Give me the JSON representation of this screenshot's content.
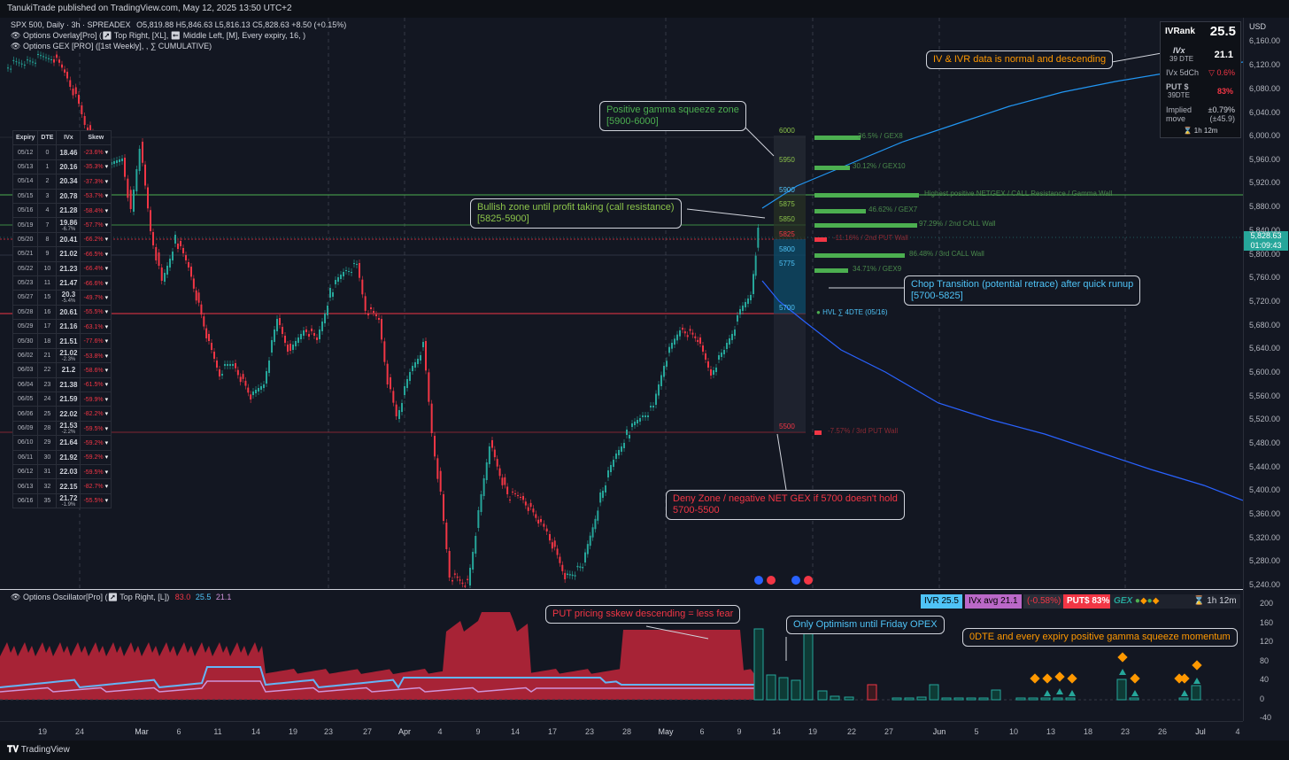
{
  "header": {
    "published": "TanukiTrade published on TradingView.com, May 12, 2025 13:50 UTC+2",
    "symbol": "SPX 500, Daily · 3h · SPREADEX",
    "ohlc": "O5,819.88 H5,846.63 L5,816.13 C5,828.63 +8.50 (+0.15%)",
    "indicator1": "Options Overlay[Pro] (↗ Top Right, [XL], ⬅ Middle Left, [M], Every expiry, 16, )",
    "indicator2": "Options GEX [PRO] ([1st Weekly], , ∑ CUMULATIVE)"
  },
  "expiry_table": {
    "headers": [
      "Expiry",
      "DTE",
      "IVx",
      "Skew"
    ],
    "rows": [
      {
        "expiry": "05/12",
        "dte": "0",
        "ivx": "18.46",
        "chg": "",
        "skew": "-23.6%"
      },
      {
        "expiry": "05/13",
        "dte": "1",
        "ivx": "20.16",
        "chg": "",
        "skew": "-35.3%"
      },
      {
        "expiry": "05/14",
        "dte": "2",
        "ivx": "20.34",
        "chg": "",
        "skew": "-37.3%"
      },
      {
        "expiry": "05/15",
        "dte": "3",
        "ivx": "20.78",
        "chg": "",
        "skew": "-53.7%"
      },
      {
        "expiry": "05/16",
        "dte": "4",
        "ivx": "21.28",
        "chg": "",
        "skew": "-58.4%"
      },
      {
        "expiry": "05/19",
        "dte": "7",
        "ivx": "19.86",
        "chg": "-6.7%",
        "skew": "-57.7%"
      },
      {
        "expiry": "05/20",
        "dte": "8",
        "ivx": "20.41",
        "chg": "",
        "skew": "-66.2%"
      },
      {
        "expiry": "05/21",
        "dte": "9",
        "ivx": "21.02",
        "chg": "",
        "skew": "-66.5%"
      },
      {
        "expiry": "05/22",
        "dte": "10",
        "ivx": "21.23",
        "chg": "",
        "skew": "-66.4%"
      },
      {
        "expiry": "05/23",
        "dte": "11",
        "ivx": "21.47",
        "chg": "",
        "skew": "-66.6%"
      },
      {
        "expiry": "05/27",
        "dte": "15",
        "ivx": "20.3",
        "chg": "-5.4%",
        "skew": "-49.7%"
      },
      {
        "expiry": "05/28",
        "dte": "16",
        "ivx": "20.61",
        "chg": "",
        "skew": "-55.5%"
      },
      {
        "expiry": "05/29",
        "dte": "17",
        "ivx": "21.16",
        "chg": "",
        "skew": "-63.1%"
      },
      {
        "expiry": "05/30",
        "dte": "18",
        "ivx": "21.51",
        "chg": "",
        "skew": "-77.6%"
      },
      {
        "expiry": "06/02",
        "dte": "21",
        "ivx": "21.02",
        "chg": "-2.3%",
        "skew": "-53.8%"
      },
      {
        "expiry": "06/03",
        "dte": "22",
        "ivx": "21.2",
        "chg": "",
        "skew": "-58.6%"
      },
      {
        "expiry": "06/04",
        "dte": "23",
        "ivx": "21.38",
        "chg": "",
        "skew": "-61.5%"
      },
      {
        "expiry": "06/05",
        "dte": "24",
        "ivx": "21.59",
        "chg": "",
        "skew": "-59.9%"
      },
      {
        "expiry": "06/06",
        "dte": "25",
        "ivx": "22.02",
        "chg": "",
        "skew": "-82.2%"
      },
      {
        "expiry": "06/09",
        "dte": "28",
        "ivx": "21.53",
        "chg": "-2.2%",
        "skew": "-59.5%"
      },
      {
        "expiry": "06/10",
        "dte": "29",
        "ivx": "21.64",
        "chg": "",
        "skew": "-59.2%"
      },
      {
        "expiry": "06/11",
        "dte": "30",
        "ivx": "21.92",
        "chg": "",
        "skew": "-59.2%"
      },
      {
        "expiry": "06/12",
        "dte": "31",
        "ivx": "22.03",
        "chg": "",
        "skew": "-59.5%"
      },
      {
        "expiry": "06/13",
        "dte": "32",
        "ivx": "22.15",
        "chg": "",
        "skew": "-82.7%"
      },
      {
        "expiry": "06/16",
        "dte": "35",
        "ivx": "21.72",
        "chg": "-1.9%",
        "skew": "-55.5%"
      }
    ]
  },
  "ivr_panel": {
    "ivr_label": "IVRank",
    "ivr_value": "25.5",
    "ivx_label": "IVx",
    "ivx_dte": "39 DTE",
    "ivx_value": "21.1",
    "ivx5d_label": "IVx 5dCh",
    "ivx5d_value": "▽ 0.6%",
    "put_label": "PUT $",
    "put_dte": "39DTE",
    "put_value": "83%",
    "implied_label": "Implied move",
    "implied_pct": "±0.79%",
    "implied_pts": "(±45.9)",
    "timer": "⌛ 1h 12m"
  },
  "price_axis": {
    "ticks": [
      "6,160.00",
      "6,120.00",
      "6,080.00",
      "6,040.00",
      "6,000.00",
      "5,960.00",
      "5,920.00",
      "5,880.00",
      "5,840.00",
      "5,800.00",
      "5,760.00",
      "5,720.00",
      "5,680.00",
      "5,640.00",
      "5,600.00",
      "5,560.00",
      "5,520.00",
      "5,480.00",
      "5,440.00",
      "5,400.00",
      "5,360.00",
      "5,320.00",
      "5,280.00",
      "5,240.00"
    ],
    "currency": "USD",
    "last_price": "5,828.63",
    "last_timer": "01:09:43",
    "last_color": "#26a69a"
  },
  "osc_axis": {
    "ticks": [
      "200",
      "160",
      "120",
      "80",
      "40",
      "0",
      "-40"
    ]
  },
  "x_axis": {
    "ticks": [
      "19",
      "24",
      "Mar",
      "6",
      "11",
      "14",
      "19",
      "23",
      "27",
      "Apr",
      "4",
      "9",
      "14",
      "17",
      "23",
      "28",
      "May",
      "6",
      "9",
      "14",
      "19",
      "22",
      "27",
      "Jun",
      "5",
      "10",
      "13",
      "18",
      "23",
      "26",
      "Jul",
      "4"
    ]
  },
  "levels": {
    "strikes": [
      "6000",
      "5950",
      "5900",
      "5875",
      "5850",
      "5825",
      "5800",
      "5775",
      "5700",
      "5500"
    ],
    "hvl_label": "HVL ∑ 4DTE (05/16)"
  },
  "gex_labels": [
    "36.5% / GEX8",
    "30.12% / GEX10",
    "Highest positive NETGEX / CALL Resistance / Gamma Wall",
    "46.62% / GEX7",
    "97.29% / 2nd CALL Wall",
    "-11.16% / 2nd PUT Wall",
    "86.48% / 3rd CALL Wall",
    "34.71% / GEX9",
    "-7.57% / 3rd PUT Wall"
  ],
  "callouts": {
    "ivr_note": "IV & IVR data is normal and  descending",
    "pos_gamma": "Positive gamma squeeze zone",
    "pos_gamma_range": "[5900-6000]",
    "bullish": "Bullish zone until profit taking (call resistance)",
    "bullish_range": "[5825-5900]",
    "chop": "Chop Transition (potential retrace) after quick runup",
    "chop_range": "[5700-5825]",
    "deny": "Deny Zone / negative NET GEX if 5700 doesn't hold",
    "deny_range": "5700-5500",
    "put_skew": "PUT pricing sskew descending = less fear",
    "optimism": "Only Optimism until Friday OPEX",
    "zero_dte": "0DTE and every expiry positive gamma  squeeze momentum"
  },
  "oscillator": {
    "title": "Options Oscillator[Pro] (↗ Top Right, [L])",
    "v1": "83.0",
    "v2": "25.5",
    "v3": "21.1",
    "ivr_pill": "IVR 25.5",
    "ivx_pill": "IVx avg 21.1",
    "chg_pill": "(-0.58%)",
    "put_pill": "PUT$ 83%",
    "gex_label": "GEX",
    "timer": "⌛ 1h 12m"
  },
  "footer": {
    "brand": "TradingView"
  }
}
